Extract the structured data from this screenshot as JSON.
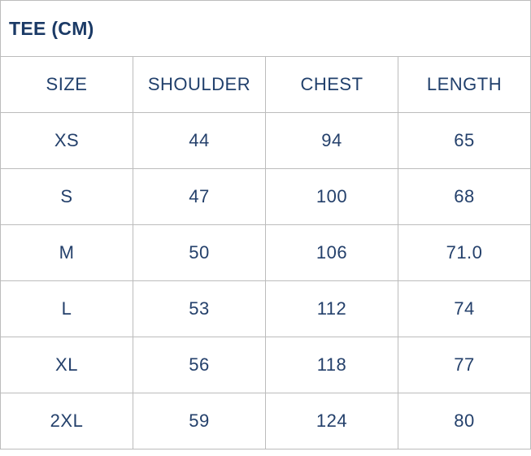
{
  "chart_data": {
    "type": "table",
    "title": "TEE (CM)",
    "columns": [
      "SIZE",
      "SHOULDER",
      "CHEST",
      "LENGTH"
    ],
    "rows": [
      [
        "XS",
        "44",
        "94",
        "65"
      ],
      [
        "S",
        "47",
        "100",
        "68"
      ],
      [
        "M",
        "50",
        "106",
        "71.0"
      ],
      [
        "L",
        "53",
        "112",
        "74"
      ],
      [
        "XL",
        "56",
        "118",
        "77"
      ],
      [
        "2XL",
        "59",
        "124",
        "80"
      ]
    ]
  },
  "colors": {
    "cell_text": "#24406b",
    "title_text": "#1b3a66",
    "border": "#bcbcbc",
    "background": "#ffffff"
  }
}
